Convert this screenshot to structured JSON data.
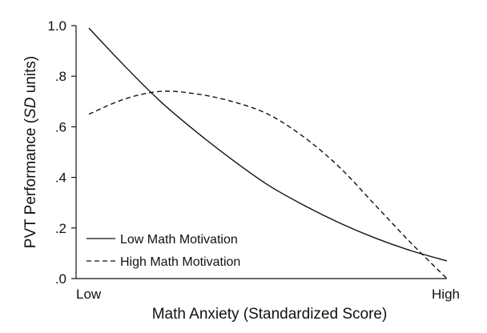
{
  "chart_data": {
    "type": "line",
    "title": "",
    "xlabel": "Math Anxiety (Standardized Score)",
    "ylabel": {
      "prefix": "PVT Performance (",
      "italic": "SD",
      "suffix": " units)"
    },
    "xlim": [
      0,
      1
    ],
    "ylim": [
      0,
      1.0
    ],
    "x_ticks": [
      {
        "value": 0,
        "label": "Low"
      },
      {
        "value": 1,
        "label": "High"
      }
    ],
    "y_ticks": [
      {
        "value": 0.0,
        "label": ".0"
      },
      {
        "value": 0.2,
        "label": ".2"
      },
      {
        "value": 0.4,
        "label": ".4"
      },
      {
        "value": 0.6,
        "label": ".6"
      },
      {
        "value": 0.8,
        "label": ".8"
      },
      {
        "value": 1.0,
        "label": "1.0"
      }
    ],
    "grid": false,
    "legend_position": "bottom-left",
    "series": [
      {
        "name": "Low Math Motivation",
        "style": "solid",
        "color": "#111111",
        "x": [
          0.0,
          0.1,
          0.2,
          0.3,
          0.4,
          0.5,
          0.6,
          0.7,
          0.8,
          0.9,
          1.0
        ],
        "y": [
          0.99,
          0.84,
          0.7,
          0.58,
          0.47,
          0.37,
          0.29,
          0.22,
          0.16,
          0.11,
          0.07
        ]
      },
      {
        "name": "High Math Motivation",
        "style": "dashed",
        "color": "#111111",
        "x": [
          0.0,
          0.1,
          0.2,
          0.3,
          0.4,
          0.5,
          0.6,
          0.7,
          0.8,
          0.9,
          1.0
        ],
        "y": [
          0.65,
          0.71,
          0.74,
          0.73,
          0.7,
          0.65,
          0.56,
          0.44,
          0.29,
          0.14,
          0.0
        ]
      }
    ]
  }
}
